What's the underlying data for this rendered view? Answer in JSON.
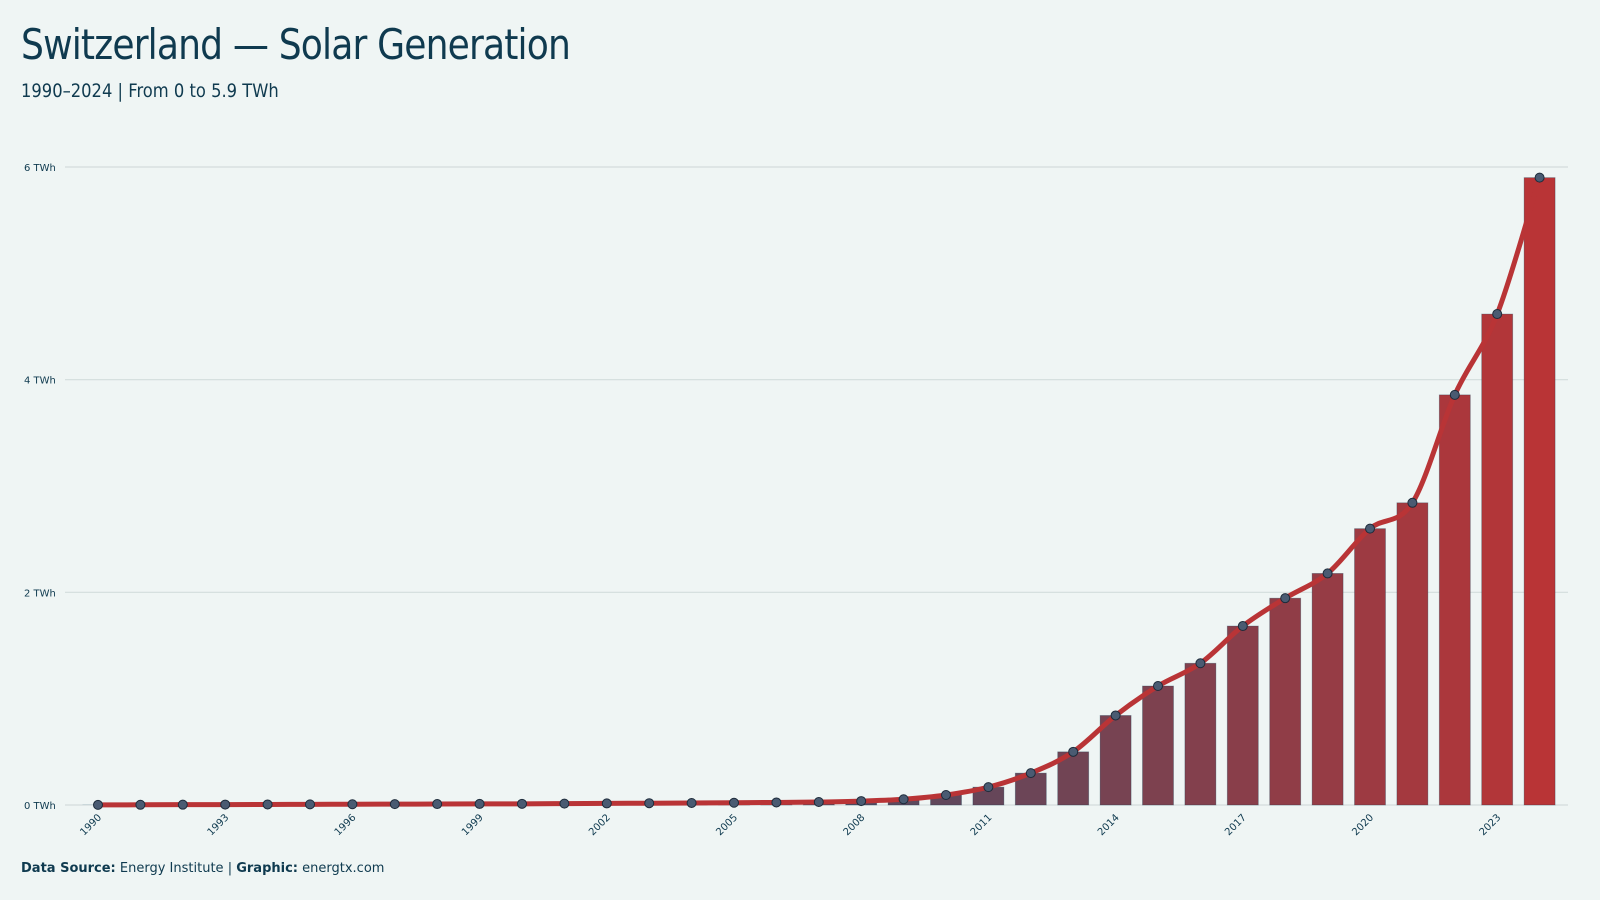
{
  "header": {
    "title": "Switzerland — Solar Generation",
    "subtitle": "1990–2024 | From 0 to 5.9 TWh"
  },
  "footer": {
    "source_label": "Data Source:",
    "source_value": "Energy Institute",
    "separator": "|",
    "graphic_label": "Graphic:",
    "graphic_value": "energtx.com"
  },
  "colors": {
    "background": "#eff5f4",
    "text": "#0f3a4f",
    "bar_start": "#1f5677",
    "bar_end": "#b93436",
    "line": "#b93436",
    "marker_fill": "#4a5b72",
    "grid": "#d3dcdc"
  },
  "chart_data": {
    "type": "bar",
    "title": "Switzerland — Solar Generation",
    "subtitle": "1990–2024 | From 0 to 5.9 TWh",
    "xlabel": "",
    "ylabel": "",
    "unit": "TWh",
    "categories": [
      "1990",
      "1991",
      "1992",
      "1993",
      "1994",
      "1995",
      "1996",
      "1997",
      "1998",
      "1999",
      "2000",
      "2001",
      "2002",
      "2003",
      "2004",
      "2005",
      "2006",
      "2007",
      "2008",
      "2009",
      "2010",
      "2011",
      "2012",
      "2013",
      "2014",
      "2015",
      "2016",
      "2017",
      "2018",
      "2019",
      "2020",
      "2021",
      "2022",
      "2023",
      "2024"
    ],
    "x_tick_labels": [
      "1990",
      "1993",
      "1996",
      "1999",
      "2002",
      "2005",
      "2008",
      "2011",
      "2014",
      "2017",
      "2020",
      "2023"
    ],
    "series": [
      {
        "values": [
          0.001,
          0.002,
          0.003,
          0.004,
          0.005,
          0.006,
          0.007,
          0.008,
          0.009,
          0.01,
          0.011,
          0.013,
          0.015,
          0.017,
          0.019,
          0.021,
          0.024,
          0.028,
          0.037,
          0.054,
          0.094,
          0.168,
          0.3,
          0.5,
          0.842,
          1.119,
          1.333,
          1.683,
          1.945,
          2.178,
          2.599,
          2.842,
          3.857,
          4.617,
          5.9
        ]
      }
    ],
    "overlay": "line-with-markers",
    "ylim": [
      0,
      6
    ],
    "y_ticks": [
      0,
      2,
      4,
      6
    ],
    "y_tick_labels": [
      "0 TWh",
      "2 TWh",
      "4 TWh",
      "6 TWh"
    ],
    "grid": "horizontal",
    "legend": "none"
  }
}
